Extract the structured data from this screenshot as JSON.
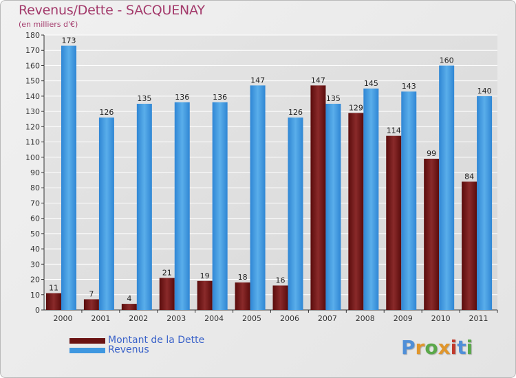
{
  "header": {
    "title": "Revenus/Dette - SACQUENAY",
    "subtitle": "(en milliers d'€)"
  },
  "brand": {
    "letters": [
      "P",
      "r",
      "o",
      "x",
      "i",
      "t",
      "i"
    ],
    "colors": [
      "#4f8fd8",
      "#e0962c",
      "#5aa84a",
      "#e0962c",
      "#c0392b",
      "#4f8fd8",
      "#5aa84a"
    ]
  },
  "colors": {
    "dette": "#7a1e1e",
    "revenus": "#3e97e0",
    "grid": "#ffffff",
    "axis": "#333333"
  },
  "legend": {
    "dette_label": "Montant de la Dette",
    "revenus_label": "Revenus"
  },
  "chart_data": {
    "type": "bar",
    "title": "Revenus/Dette - SACQUENAY",
    "ylabel": "(en milliers d'€)",
    "xlabel": "",
    "ylim": [
      0,
      180
    ],
    "yticks": [
      0,
      10,
      20,
      30,
      40,
      50,
      60,
      70,
      80,
      90,
      100,
      110,
      120,
      130,
      140,
      150,
      160,
      170,
      180
    ],
    "categories": [
      "2000",
      "2001",
      "2002",
      "2003",
      "2004",
      "2005",
      "2006",
      "2007",
      "2008",
      "2009",
      "2010",
      "2011"
    ],
    "series": [
      {
        "name": "Montant de la Dette",
        "values": [
          11,
          7,
          4,
          21,
          19,
          18,
          16,
          147,
          129,
          114,
          99,
          84
        ]
      },
      {
        "name": "Revenus",
        "values": [
          173,
          126,
          135,
          136,
          136,
          147,
          126,
          135,
          145,
          143,
          160,
          140
        ]
      }
    ],
    "grid": true,
    "legend_position": "bottom-left"
  }
}
